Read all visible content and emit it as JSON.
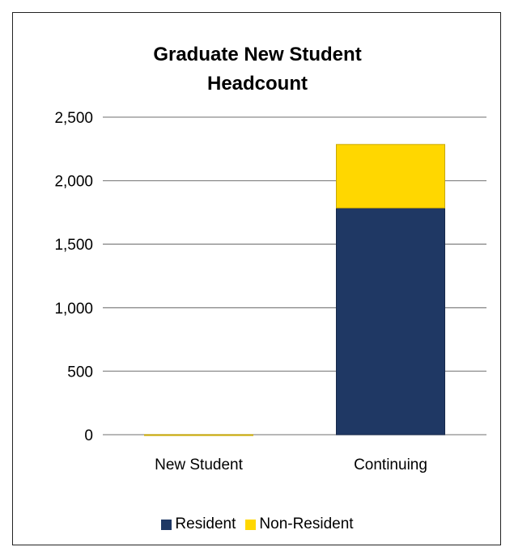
{
  "chart_data": {
    "type": "bar",
    "stacked": true,
    "title_lines": [
      "Graduate New Student",
      "Headcount"
    ],
    "categories": [
      "New Student",
      "Continuing"
    ],
    "series": [
      {
        "name": "Resident",
        "values": [
          0,
          1785
        ],
        "color": "#1F3864"
      },
      {
        "name": "Non-Resident",
        "values": [
          0,
          500
        ],
        "color": "#FFD700"
      }
    ],
    "ylim": [
      0,
      2500
    ],
    "yticks": [
      0,
      500,
      1000,
      1500,
      2000,
      2500
    ],
    "ytick_labels": [
      "0",
      "500",
      "1,000",
      "1,500",
      "2,000",
      "2,500"
    ],
    "grid": true,
    "legend_position": "bottom"
  }
}
